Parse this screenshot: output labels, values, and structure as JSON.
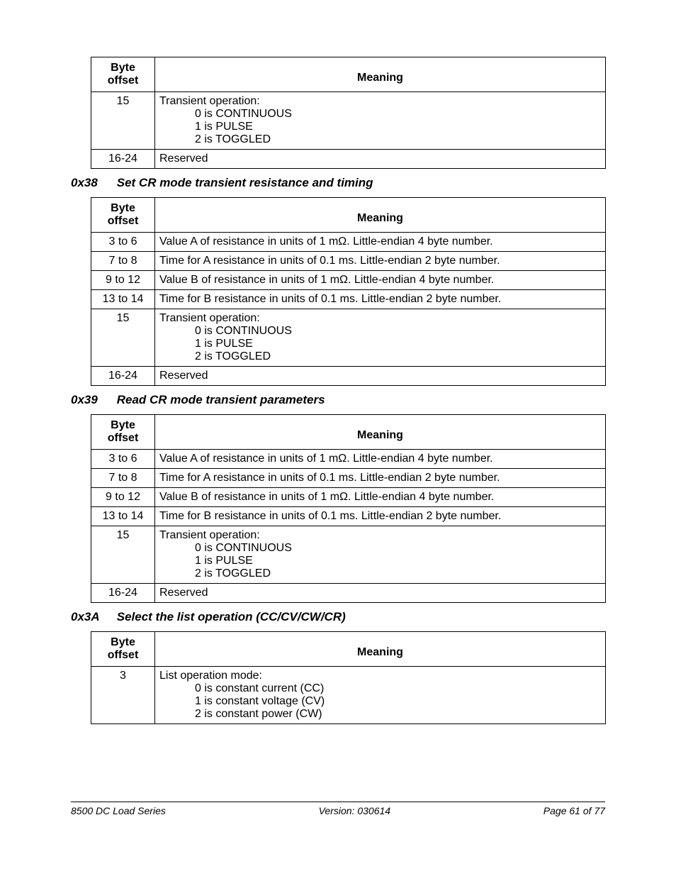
{
  "headers": {
    "byte_offset": "Byte offset",
    "meaning": "Meaning"
  },
  "table1": {
    "rows": [
      {
        "offset": "15",
        "meaning": "Transient operation:",
        "sub": [
          "0 is CONTINUOUS",
          "1 is PULSE",
          "2 is TOGGLED"
        ]
      },
      {
        "offset": "16-24",
        "meaning": "Reserved"
      }
    ]
  },
  "section2": {
    "code": "0x38",
    "title": "Set CR mode transient resistance and timing"
  },
  "table2": {
    "rows": [
      {
        "offset": "3 to 6",
        "meaning": "Value A of resistance in units of 1 mΩ.  Little-endian 4 byte number."
      },
      {
        "offset": "7 to 8",
        "meaning": "Time for A resistance in units of 0.1 ms.  Little-endian 2 byte number."
      },
      {
        "offset": "9 to 12",
        "meaning": "Value B of resistance in units of 1 mΩ.  Little-endian 4 byte number."
      },
      {
        "offset": "13 to 14",
        "meaning": "Time for B resistance in units of 0.1 ms.  Little-endian 2 byte number."
      },
      {
        "offset": "15",
        "meaning": "Transient operation:",
        "sub": [
          "0 is CONTINUOUS",
          "1 is PULSE",
          "2 is TOGGLED"
        ]
      },
      {
        "offset": "16-24",
        "meaning": "Reserved"
      }
    ]
  },
  "section3": {
    "code": "0x39",
    "title": "Read CR mode transient parameters"
  },
  "table3": {
    "rows": [
      {
        "offset": "3 to 6",
        "meaning": "Value A of resistance in units of 1 mΩ.  Little-endian 4 byte number."
      },
      {
        "offset": "7 to 8",
        "meaning": "Time for A resistance in units of 0.1 ms.  Little-endian 2 byte number."
      },
      {
        "offset": "9 to 12",
        "meaning": "Value B of resistance in units of 1 mΩ.  Little-endian 4 byte number."
      },
      {
        "offset": "13 to 14",
        "meaning": "Time for B resistance in units of 0.1 ms.  Little-endian 2 byte number."
      },
      {
        "offset": "15",
        "meaning": "Transient operation:",
        "sub": [
          "0 is CONTINUOUS",
          "1 is PULSE",
          "2 is TOGGLED"
        ]
      },
      {
        "offset": "16-24",
        "meaning": "Reserved"
      }
    ]
  },
  "section4": {
    "code": "0x3A",
    "title": "Select the list operation (CC/CV/CW/CR)"
  },
  "table4": {
    "rows": [
      {
        "offset": "3",
        "meaning": "List operation mode:",
        "sub": [
          "0 is constant current (CC)",
          "1 is constant voltage (CV)",
          "2 is constant power (CW)"
        ]
      }
    ]
  },
  "footer": {
    "left": "8500 DC Load Series",
    "center": "Version:  030614",
    "right": "Page 61 of 77"
  }
}
